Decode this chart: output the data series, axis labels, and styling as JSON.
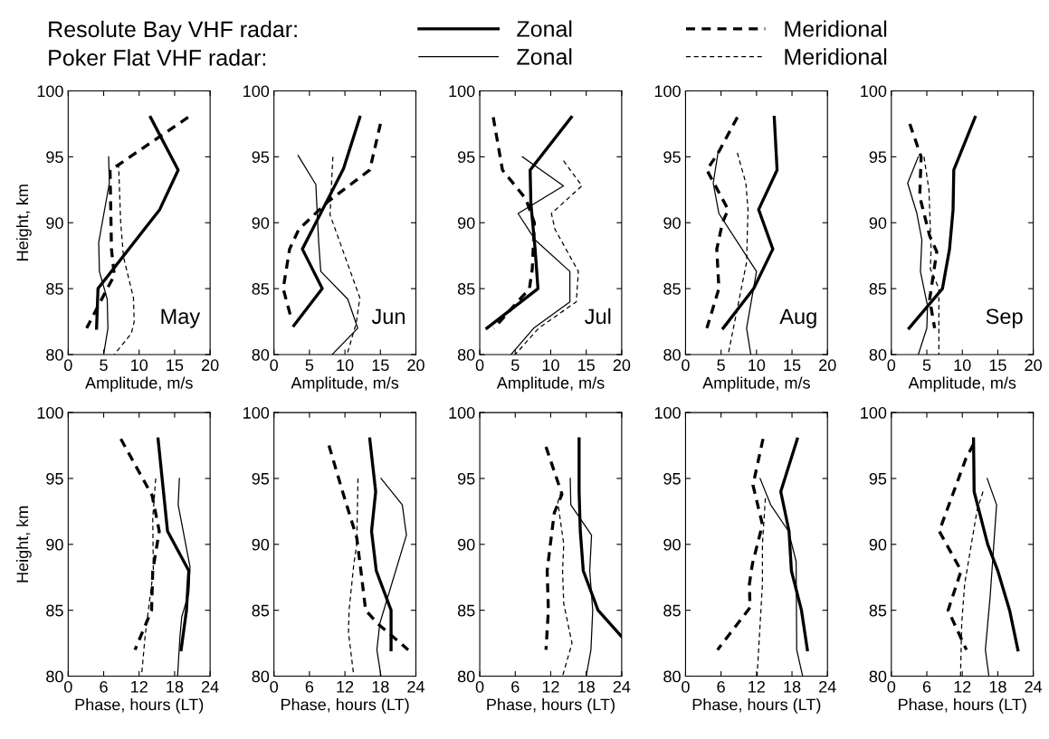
{
  "chart_data": [
    {
      "type": "line",
      "title": "May",
      "xlabel": "Amplitude, m/s",
      "ylabel": "Height, km",
      "xlim": [
        0,
        20
      ],
      "xticks": [
        0,
        5,
        10,
        15,
        20
      ],
      "ylim": [
        80,
        100
      ],
      "yticks": [
        80,
        85,
        90,
        95,
        100
      ],
      "legend": "top",
      "annotations": [
        "Resolute Bay VHF radar:",
        "Poker Flat VHF radar:"
      ],
      "series": [
        {
          "name": "Zonal",
          "color": "#000000",
          "line_style": "solid",
          "x": [
            11.6,
            15.5,
            12.9,
            4.2,
            4.0
          ],
          "values": [
            98,
            94,
            91,
            85,
            82
          ]
        },
        {
          "name": "Meridional",
          "color": "#000000",
          "line_style": "dashed",
          "x": [
            16.9,
            7.1,
            5.9,
            6.1,
            6.5,
            5.5,
            2.6
          ],
          "values": [
            98,
            94.4,
            94,
            88,
            86,
            85,
            82
          ]
        },
        {
          "name": "Zonal",
          "color": "#000000",
          "line_style": "solid",
          "x": [
            5.7,
            5.8,
            4.3,
            4.4,
            5.5,
            5.6,
            5.0
          ],
          "values": [
            95,
            93,
            88.5,
            86.3,
            84.2,
            82,
            80
          ]
        },
        {
          "name": "Meridional",
          "color": "#000000",
          "line_style": "dashed",
          "x": [
            7.1,
            7.4,
            7.8,
            9.2,
            9.3,
            8.9,
            6.5
          ],
          "values": [
            94.5,
            90,
            87.4,
            84.3,
            82.5,
            81.6,
            80
          ]
        }
      ]
    },
    {
      "type": "line",
      "title": "Jun",
      "xlabel": "Amplitude, m/s",
      "xlim": [
        0,
        20
      ],
      "xticks": [
        0,
        5,
        10,
        15,
        20
      ],
      "ylim": [
        80,
        100
      ],
      "yticks": [
        80,
        85,
        90,
        95,
        100
      ],
      "series": [
        {
          "color": "#000000",
          "line_style": "solid",
          "x": [
            12.1,
            9.8,
            4.0,
            6.8,
            2.8
          ],
          "values": [
            98,
            94.1,
            88,
            85,
            82.2
          ]
        },
        {
          "color": "#000000",
          "line_style": "dashed",
          "x": [
            15.0,
            13.5,
            7.6,
            3.5,
            2.2,
            1.3,
            2.3
          ],
          "values": [
            97.5,
            94,
            91.6,
            89.5,
            88,
            85,
            83
          ]
        },
        {
          "color": "#000000",
          "line_style": "solid",
          "x": [
            3.4,
            5.9,
            6.3,
            6.6,
            10.4,
            11.8,
            8.2
          ],
          "values": [
            95.1,
            92.9,
            88.5,
            86.3,
            84.2,
            82,
            80
          ]
        },
        {
          "color": "#000000",
          "line_style": "dashed",
          "x": [
            8.3,
            7.9,
            12.1,
            11.6,
            10.3
          ],
          "values": [
            95,
            90.6,
            84.3,
            82.4,
            80
          ]
        }
      ]
    },
    {
      "type": "line",
      "title": "Jul",
      "xlabel": "Amplitude, m/s",
      "xlim": [
        0,
        20
      ],
      "xticks": [
        0,
        5,
        10,
        15,
        20
      ],
      "ylim": [
        80,
        100
      ],
      "yticks": [
        80,
        85,
        90,
        95,
        100
      ],
      "series": [
        {
          "color": "#000000",
          "line_style": "solid",
          "x": [
            12.9,
            7.1,
            7.2,
            7.8,
            8.2,
            1.0
          ],
          "values": [
            98,
            94,
            91.5,
            88,
            85,
            82
          ]
        },
        {
          "color": "#000000",
          "line_style": "dashed",
          "x": [
            1.9,
            3.2,
            6.5,
            7.7,
            7.4,
            7.0,
            2.0
          ],
          "values": [
            98,
            94,
            91.8,
            90,
            86.5,
            85,
            82
          ]
        },
        {
          "color": "#000000",
          "line_style": "solid",
          "x": [
            6.0,
            11.8,
            5.4,
            7.8,
            12.7,
            12.7,
            7.6,
            4.4
          ],
          "values": [
            95,
            92.8,
            90.7,
            88.7,
            86.3,
            84,
            82,
            80
          ]
        },
        {
          "color": "#000000",
          "line_style": "dashed",
          "x": [
            11.8,
            14.4,
            10.1,
            10.6,
            13.9,
            13.6,
            8.3,
            5.0
          ],
          "values": [
            94.7,
            92.8,
            90.7,
            89.5,
            86.3,
            84,
            82,
            80
          ]
        }
      ]
    },
    {
      "type": "line",
      "title": "Aug",
      "xlabel": "Amplitude, m/s",
      "xlim": [
        0,
        20
      ],
      "xticks": [
        0,
        5,
        10,
        15,
        20
      ],
      "ylim": [
        80,
        100
      ],
      "yticks": [
        80,
        85,
        90,
        95,
        100
      ],
      "series": [
        {
          "color": "#000000",
          "line_style": "solid",
          "x": [
            12.5,
            12.9,
            10.3,
            12.3,
            9.6,
            5.3
          ],
          "values": [
            98,
            94,
            91,
            88,
            85,
            82
          ]
        },
        {
          "color": "#000000",
          "line_style": "dashed",
          "x": [
            7.3,
            4.6,
            3.0,
            6.0,
            5.2,
            4.4,
            4.7,
            3.0
          ],
          "values": [
            98,
            95.3,
            94,
            91,
            90,
            88,
            85,
            82
          ]
        },
        {
          "color": "#000000",
          "line_style": "solid",
          "x": [
            4.6,
            3.9,
            4.7,
            10.0,
            8.6,
            9.2
          ],
          "values": [
            95.4,
            93,
            90.7,
            86.3,
            82,
            80
          ]
        },
        {
          "color": "#000000",
          "line_style": "dashed",
          "x": [
            7.3,
            8.5,
            8.8,
            8.6,
            6.0
          ],
          "values": [
            95.3,
            93,
            91,
            87,
            80
          ]
        }
      ]
    },
    {
      "type": "line",
      "title": "Sep",
      "xlabel": "Amplitude, m/s",
      "xlim": [
        0,
        20
      ],
      "xticks": [
        0,
        5,
        10,
        15,
        20
      ],
      "ylim": [
        80,
        100
      ],
      "yticks": [
        80,
        85,
        90,
        95,
        100
      ],
      "series": [
        {
          "color": "#000000",
          "line_style": "solid",
          "x": [
            11.8,
            8.8,
            8.7,
            8.2,
            7.2,
            2.5
          ],
          "values": [
            98,
            94,
            91,
            88,
            85,
            82
          ]
        },
        {
          "color": "#000000",
          "line_style": "dashed",
          "x": [
            2.6,
            4.2,
            4.0,
            5.4,
            6.4,
            5.4,
            6.1
          ],
          "values": [
            97.5,
            95,
            92,
            89,
            87.8,
            84.2,
            82
          ]
        },
        {
          "color": "#000000",
          "line_style": "solid",
          "x": [
            3.8,
            2.3,
            3.6,
            4.3,
            4.1,
            5.1,
            5.0,
            3.8
          ],
          "values": [
            95,
            93,
            90.7,
            88.7,
            86.3,
            83.7,
            82,
            80
          ]
        },
        {
          "color": "#000000",
          "line_style": "dashed",
          "x": [
            4.6,
            5.3,
            5.6,
            5.5,
            6.7,
            6.7
          ],
          "values": [
            95,
            92.5,
            88,
            86.5,
            85,
            80
          ]
        }
      ]
    },
    {
      "type": "line",
      "xlabel": "Phase, hours (LT)",
      "ylabel": "Height, km",
      "xlim": [
        0,
        24
      ],
      "xticks": [
        0,
        6,
        12,
        18,
        24
      ],
      "ylim": [
        80,
        100
      ],
      "yticks": [
        80,
        85,
        90,
        95,
        100
      ],
      "series": [
        {
          "color": "#000000",
          "line_style": "solid",
          "x": [
            15.2,
            16.8,
            20.4,
            20.0,
            19.1
          ],
          "values": [
            98,
            91,
            88,
            85,
            82
          ]
        },
        {
          "color": "#000000",
          "line_style": "dashed",
          "x": [
            8.9,
            14.2,
            15.4,
            14.3,
            14.1,
            11.3
          ],
          "values": [
            98,
            93.7,
            91,
            88,
            85,
            82
          ]
        },
        {
          "color": "#000000",
          "line_style": "solid",
          "x": [
            18.8,
            18.6,
            20.6,
            20.4,
            19.2,
            18.9,
            18.5
          ],
          "values": [
            95,
            93,
            88.3,
            86.3,
            84.5,
            83,
            80
          ]
        },
        {
          "color": "#000000",
          "line_style": "dashed",
          "x": [
            14.8,
            14.3,
            14.4,
            13.0,
            12.4
          ],
          "values": [
            95,
            92,
            88,
            83,
            80
          ]
        }
      ]
    },
    {
      "type": "line",
      "xlabel": "Phase, hours (LT)",
      "xlim": [
        0,
        24
      ],
      "xticks": [
        0,
        6,
        12,
        18,
        24
      ],
      "ylim": [
        80,
        100
      ],
      "yticks": [
        80,
        85,
        90,
        95,
        100
      ],
      "series": [
        {
          "color": "#000000",
          "line_style": "solid",
          "x": [
            16.2,
            17.2,
            16.5,
            17.3,
            19.8,
            19.8
          ],
          "values": [
            98,
            94,
            91,
            88,
            85,
            82
          ]
        },
        {
          "color": "#000000",
          "line_style": "dashed",
          "x": [
            9.3,
            11.6,
            14.0,
            14.7,
            15.5,
            17.5,
            22.7
          ],
          "values": [
            97.5,
            94,
            90.5,
            88,
            85,
            84,
            82
          ]
        },
        {
          "color": "#000000",
          "line_style": "solid",
          "x": [
            18.1,
            21.7,
            22.4,
            17.9,
            17.4,
            18.1
          ],
          "values": [
            95,
            93,
            90.7,
            84,
            82,
            80
          ]
        },
        {
          "color": "#000000",
          "line_style": "dashed",
          "x": [
            14.2,
            14.0,
            13.5,
            12.7,
            12.6,
            13.5
          ],
          "values": [
            95,
            90,
            88.5,
            85,
            83.3,
            80
          ]
        }
      ]
    },
    {
      "type": "line",
      "xlabel": "Phase, hours (LT)",
      "xlim": [
        0,
        24
      ],
      "xticks": [
        0,
        6,
        12,
        18,
        24
      ],
      "ylim": [
        80,
        100
      ],
      "yticks": [
        80,
        85,
        90,
        95,
        100
      ],
      "series": [
        {
          "color": "#000000",
          "line_style": "solid",
          "x": [
            16.8,
            16.8,
            17.0,
            17.5,
            20.0,
            24.0
          ],
          "values": [
            98,
            94,
            91,
            88,
            85,
            83
          ]
        },
        {
          "color": "#000000",
          "line_style": "dashed",
          "x": [
            11.2,
            13.9,
            12.6,
            11.8,
            11.4,
            11.6,
            11.2
          ],
          "values": [
            97.4,
            93.8,
            92.4,
            89.5,
            88,
            85,
            82
          ]
        },
        {
          "color": "#000000",
          "line_style": "solid",
          "x": [
            15.3,
            15.4,
            18.9,
            18.6,
            19.1,
            18.8,
            18.0
          ],
          "values": [
            95,
            93,
            90.7,
            88,
            85,
            82,
            80
          ]
        },
        {
          "color": "#000000",
          "line_style": "dashed",
          "x": [
            13.8,
            13.2,
            14.2,
            14.0,
            14.2,
            15.6,
            14.0
          ],
          "values": [
            94,
            93.2,
            90,
            88,
            85.5,
            82.5,
            80
          ]
        }
      ]
    },
    {
      "type": "line",
      "xlabel": "Phase, hours (LT)",
      "xlim": [
        0,
        24
      ],
      "xticks": [
        0,
        6,
        12,
        18,
        24
      ],
      "ylim": [
        80,
        100
      ],
      "yticks": [
        80,
        85,
        90,
        95,
        100
      ],
      "series": [
        {
          "color": "#000000",
          "line_style": "solid",
          "x": [
            18.9,
            16.1,
            17.5,
            17.9,
            19.6,
            20.6
          ],
          "values": [
            98,
            94,
            91,
            88,
            85,
            82
          ]
        },
        {
          "color": "#000000",
          "line_style": "dashed",
          "x": [
            13.1,
            11.4,
            13.0,
            11.3,
            10.8,
            10.9,
            5.4
          ],
          "values": [
            98,
            94.5,
            91.5,
            88.5,
            87,
            85.2,
            82
          ]
        },
        {
          "color": "#000000",
          "line_style": "solid",
          "x": [
            12.6,
            14.4,
            17.4,
            18.7,
            18.8,
            19.8
          ],
          "values": [
            95,
            93,
            91,
            88.7,
            82,
            80
          ]
        },
        {
          "color": "#000000",
          "line_style": "dashed",
          "x": [
            13.5,
            13.0,
            13.0,
            12.1
          ],
          "values": [
            93.5,
            90,
            87,
            80
          ]
        }
      ]
    },
    {
      "type": "line",
      "xlabel": "Phase, hours (LT)",
      "xlim": [
        0,
        24
      ],
      "xticks": [
        0,
        6,
        12,
        18,
        24
      ],
      "ylim": [
        80,
        100
      ],
      "yticks": [
        80,
        85,
        90,
        95,
        100
      ],
      "series": [
        {
          "color": "#000000",
          "line_style": "solid",
          "x": [
            13.9,
            14.0,
            16.3,
            18.0,
            20.0,
            21.4
          ],
          "values": [
            98,
            94,
            90,
            88,
            85,
            82
          ]
        },
        {
          "color": "#000000",
          "line_style": "dashed",
          "x": [
            13.9,
            12.6,
            8.1,
            11.8,
            9.6,
            12.7
          ],
          "values": [
            97.6,
            96.5,
            91,
            88,
            85,
            82
          ]
        },
        {
          "color": "#000000",
          "line_style": "solid",
          "x": [
            16.2,
            17.8,
            16.7,
            15.9,
            16.5
          ],
          "values": [
            95,
            93,
            86,
            82,
            80
          ]
        },
        {
          "color": "#000000",
          "line_style": "dashed",
          "x": [
            15.5,
            14.5,
            12.4,
            11.9,
            11.7
          ],
          "values": [
            94,
            92.6,
            87,
            84,
            80
          ]
        }
      ]
    }
  ]
}
